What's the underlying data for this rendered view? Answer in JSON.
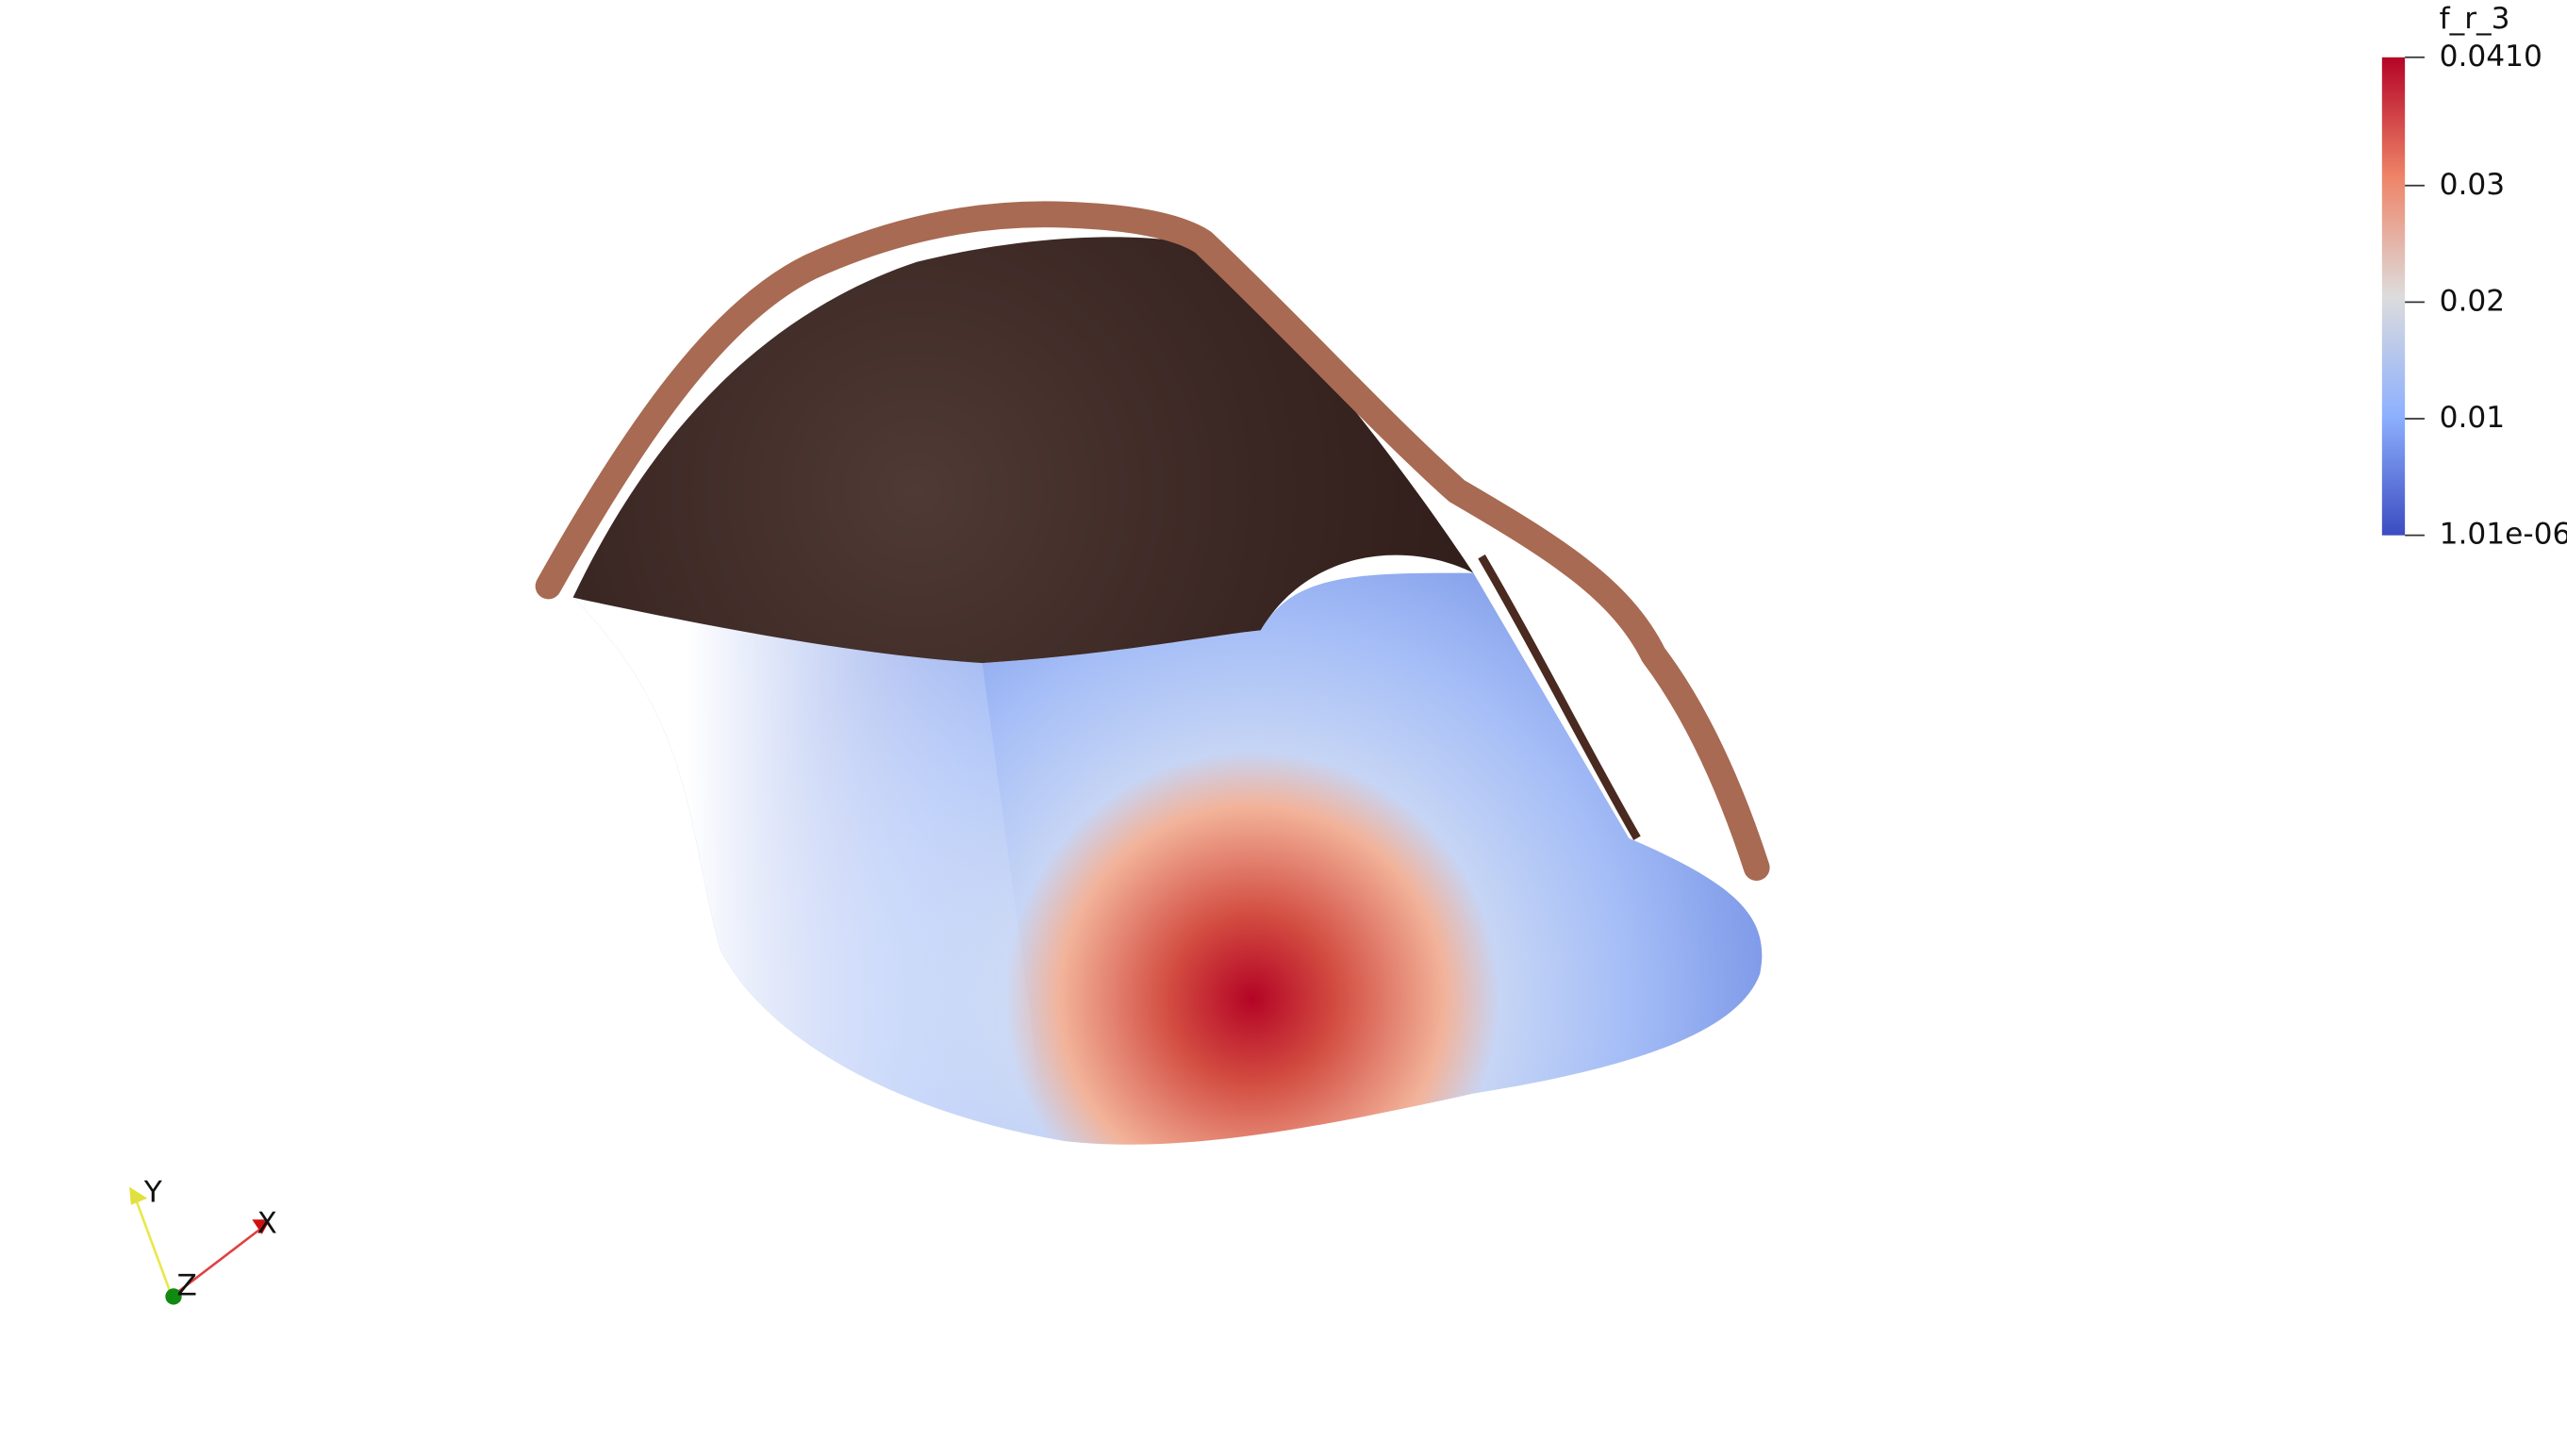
{
  "colorbar": {
    "title": "f_r_3",
    "range": [
      1.01e-06,
      0.041
    ],
    "ticks": [
      {
        "value": 0.041,
        "label": "0.0410"
      },
      0.03,
      0.02,
      0.01,
      {
        "value": 1.01e-06,
        "label": "1.01e-06"
      }
    ]
  },
  "orientation_axes": {
    "x": "X",
    "y": "Y",
    "z": "Z"
  }
}
